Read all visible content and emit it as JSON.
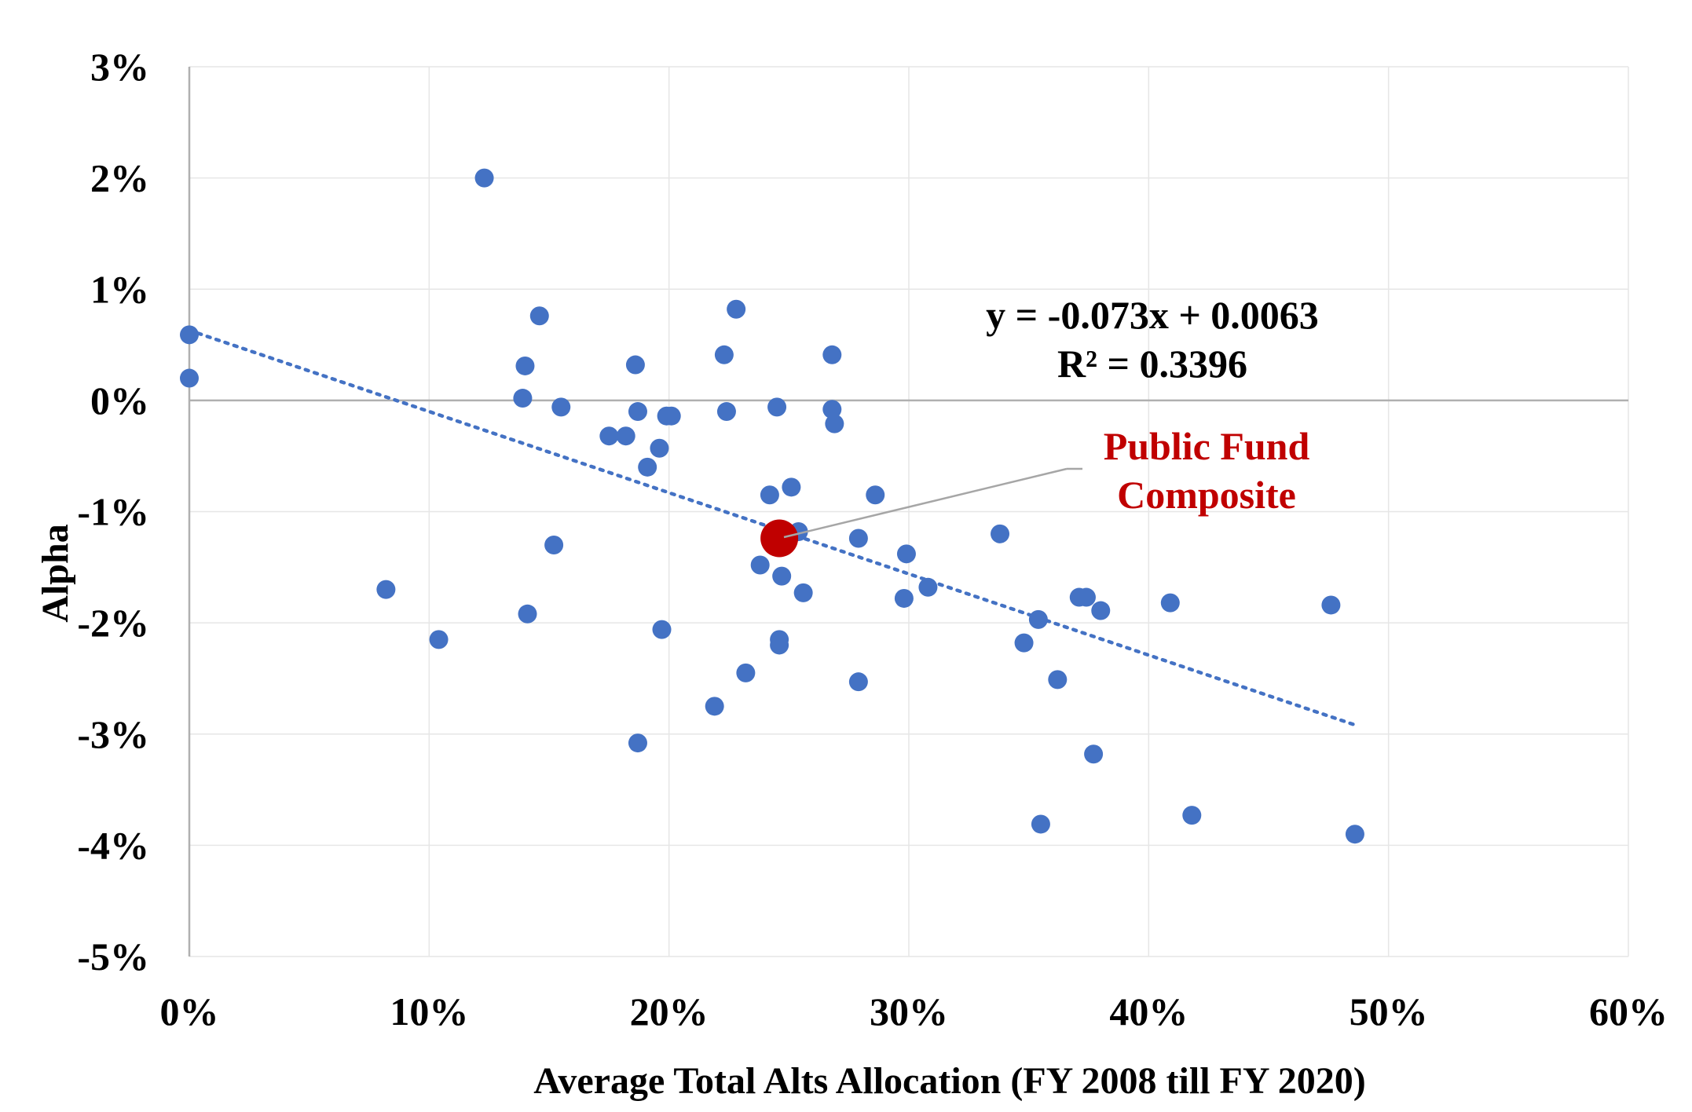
{
  "chart_data": {
    "type": "scatter",
    "title": "",
    "xlabel": "Average Total Alts Allocation (FY 2008 till FY 2020)",
    "ylabel": "Alpha",
    "xlim": [
      0,
      0.6
    ],
    "ylim": [
      -0.05,
      0.03
    ],
    "x_ticks": [
      {
        "value": 0.0,
        "label": "0%"
      },
      {
        "value": 0.1,
        "label": "10%"
      },
      {
        "value": 0.2,
        "label": "20%"
      },
      {
        "value": 0.3,
        "label": "30%"
      },
      {
        "value": 0.4,
        "label": "40%"
      },
      {
        "value": 0.5,
        "label": "50%"
      },
      {
        "value": 0.6,
        "label": "60%"
      }
    ],
    "y_ticks": [
      {
        "value": 0.03,
        "label": "3%"
      },
      {
        "value": 0.02,
        "label": "2%"
      },
      {
        "value": 0.01,
        "label": "1%"
      },
      {
        "value": 0.0,
        "label": "0%"
      },
      {
        "value": -0.01,
        "label": "-1%"
      },
      {
        "value": -0.02,
        "label": "-2%"
      },
      {
        "value": -0.03,
        "label": "-3%"
      },
      {
        "value": -0.04,
        "label": "-4%"
      },
      {
        "value": -0.05,
        "label": "-5%"
      }
    ],
    "grid": true,
    "series": [
      {
        "color": "#4472c4",
        "points": [
          [
            0.0,
            0.0059
          ],
          [
            0.0,
            0.002
          ],
          [
            0.082,
            -0.017
          ],
          [
            0.104,
            -0.0215
          ],
          [
            0.123,
            0.02
          ],
          [
            0.139,
            0.0002
          ],
          [
            0.14,
            0.0031
          ],
          [
            0.141,
            -0.0192
          ],
          [
            0.146,
            0.0076
          ],
          [
            0.152,
            -0.013
          ],
          [
            0.155,
            -0.0006
          ],
          [
            0.175,
            -0.0032
          ],
          [
            0.182,
            -0.0032
          ],
          [
            0.186,
            0.0032
          ],
          [
            0.187,
            -0.001
          ],
          [
            0.187,
            -0.0308
          ],
          [
            0.191,
            -0.006
          ],
          [
            0.196,
            -0.0043
          ],
          [
            0.197,
            -0.0206
          ],
          [
            0.199,
            -0.0014
          ],
          [
            0.201,
            -0.0014
          ],
          [
            0.219,
            -0.0275
          ],
          [
            0.223,
            0.0041
          ],
          [
            0.224,
            -0.001
          ],
          [
            0.228,
            0.0082
          ],
          [
            0.232,
            -0.0245
          ],
          [
            0.238,
            -0.0148
          ],
          [
            0.242,
            -0.0085
          ],
          [
            0.245,
            -0.0006
          ],
          [
            0.246,
            -0.0215
          ],
          [
            0.246,
            -0.022
          ],
          [
            0.247,
            -0.0158
          ],
          [
            0.251,
            -0.0078
          ],
          [
            0.254,
            -0.0118
          ],
          [
            0.256,
            -0.0173
          ],
          [
            0.268,
            0.0041
          ],
          [
            0.268,
            -0.0008
          ],
          [
            0.269,
            -0.0021
          ],
          [
            0.279,
            -0.0124
          ],
          [
            0.279,
            -0.0253
          ],
          [
            0.286,
            -0.0085
          ],
          [
            0.298,
            -0.0178
          ],
          [
            0.299,
            -0.0138
          ],
          [
            0.308,
            -0.0168
          ],
          [
            0.338,
            -0.012
          ],
          [
            0.348,
            -0.0218
          ],
          [
            0.354,
            -0.0197
          ],
          [
            0.355,
            -0.0381
          ],
          [
            0.362,
            -0.0251
          ],
          [
            0.371,
            -0.0177
          ],
          [
            0.374,
            -0.0177
          ],
          [
            0.377,
            -0.0318
          ],
          [
            0.38,
            -0.0189
          ],
          [
            0.409,
            -0.0182
          ],
          [
            0.418,
            -0.0373
          ],
          [
            0.476,
            -0.0184
          ],
          [
            0.486,
            -0.039
          ]
        ]
      },
      {
        "name": "Public Fund Composite",
        "color": "#c00000",
        "points": [
          [
            0.246,
            -0.0124
          ]
        ]
      }
    ],
    "trendline": {
      "style": "dotted",
      "color": "#4472c4",
      "slope": -0.073,
      "intercept": 0.0063,
      "x_range": [
        0.0,
        0.486
      ],
      "equation": "y = -0.073x + 0.0063",
      "r_squared": "R² = 0.3396"
    },
    "callout": {
      "text_lines": [
        "Public Fund",
        "Composite"
      ],
      "color": "#c00000"
    },
    "colors": {
      "grid": "#e6e6e6",
      "axis": "#b0b0b0",
      "leader": "#a6a6a6"
    }
  }
}
